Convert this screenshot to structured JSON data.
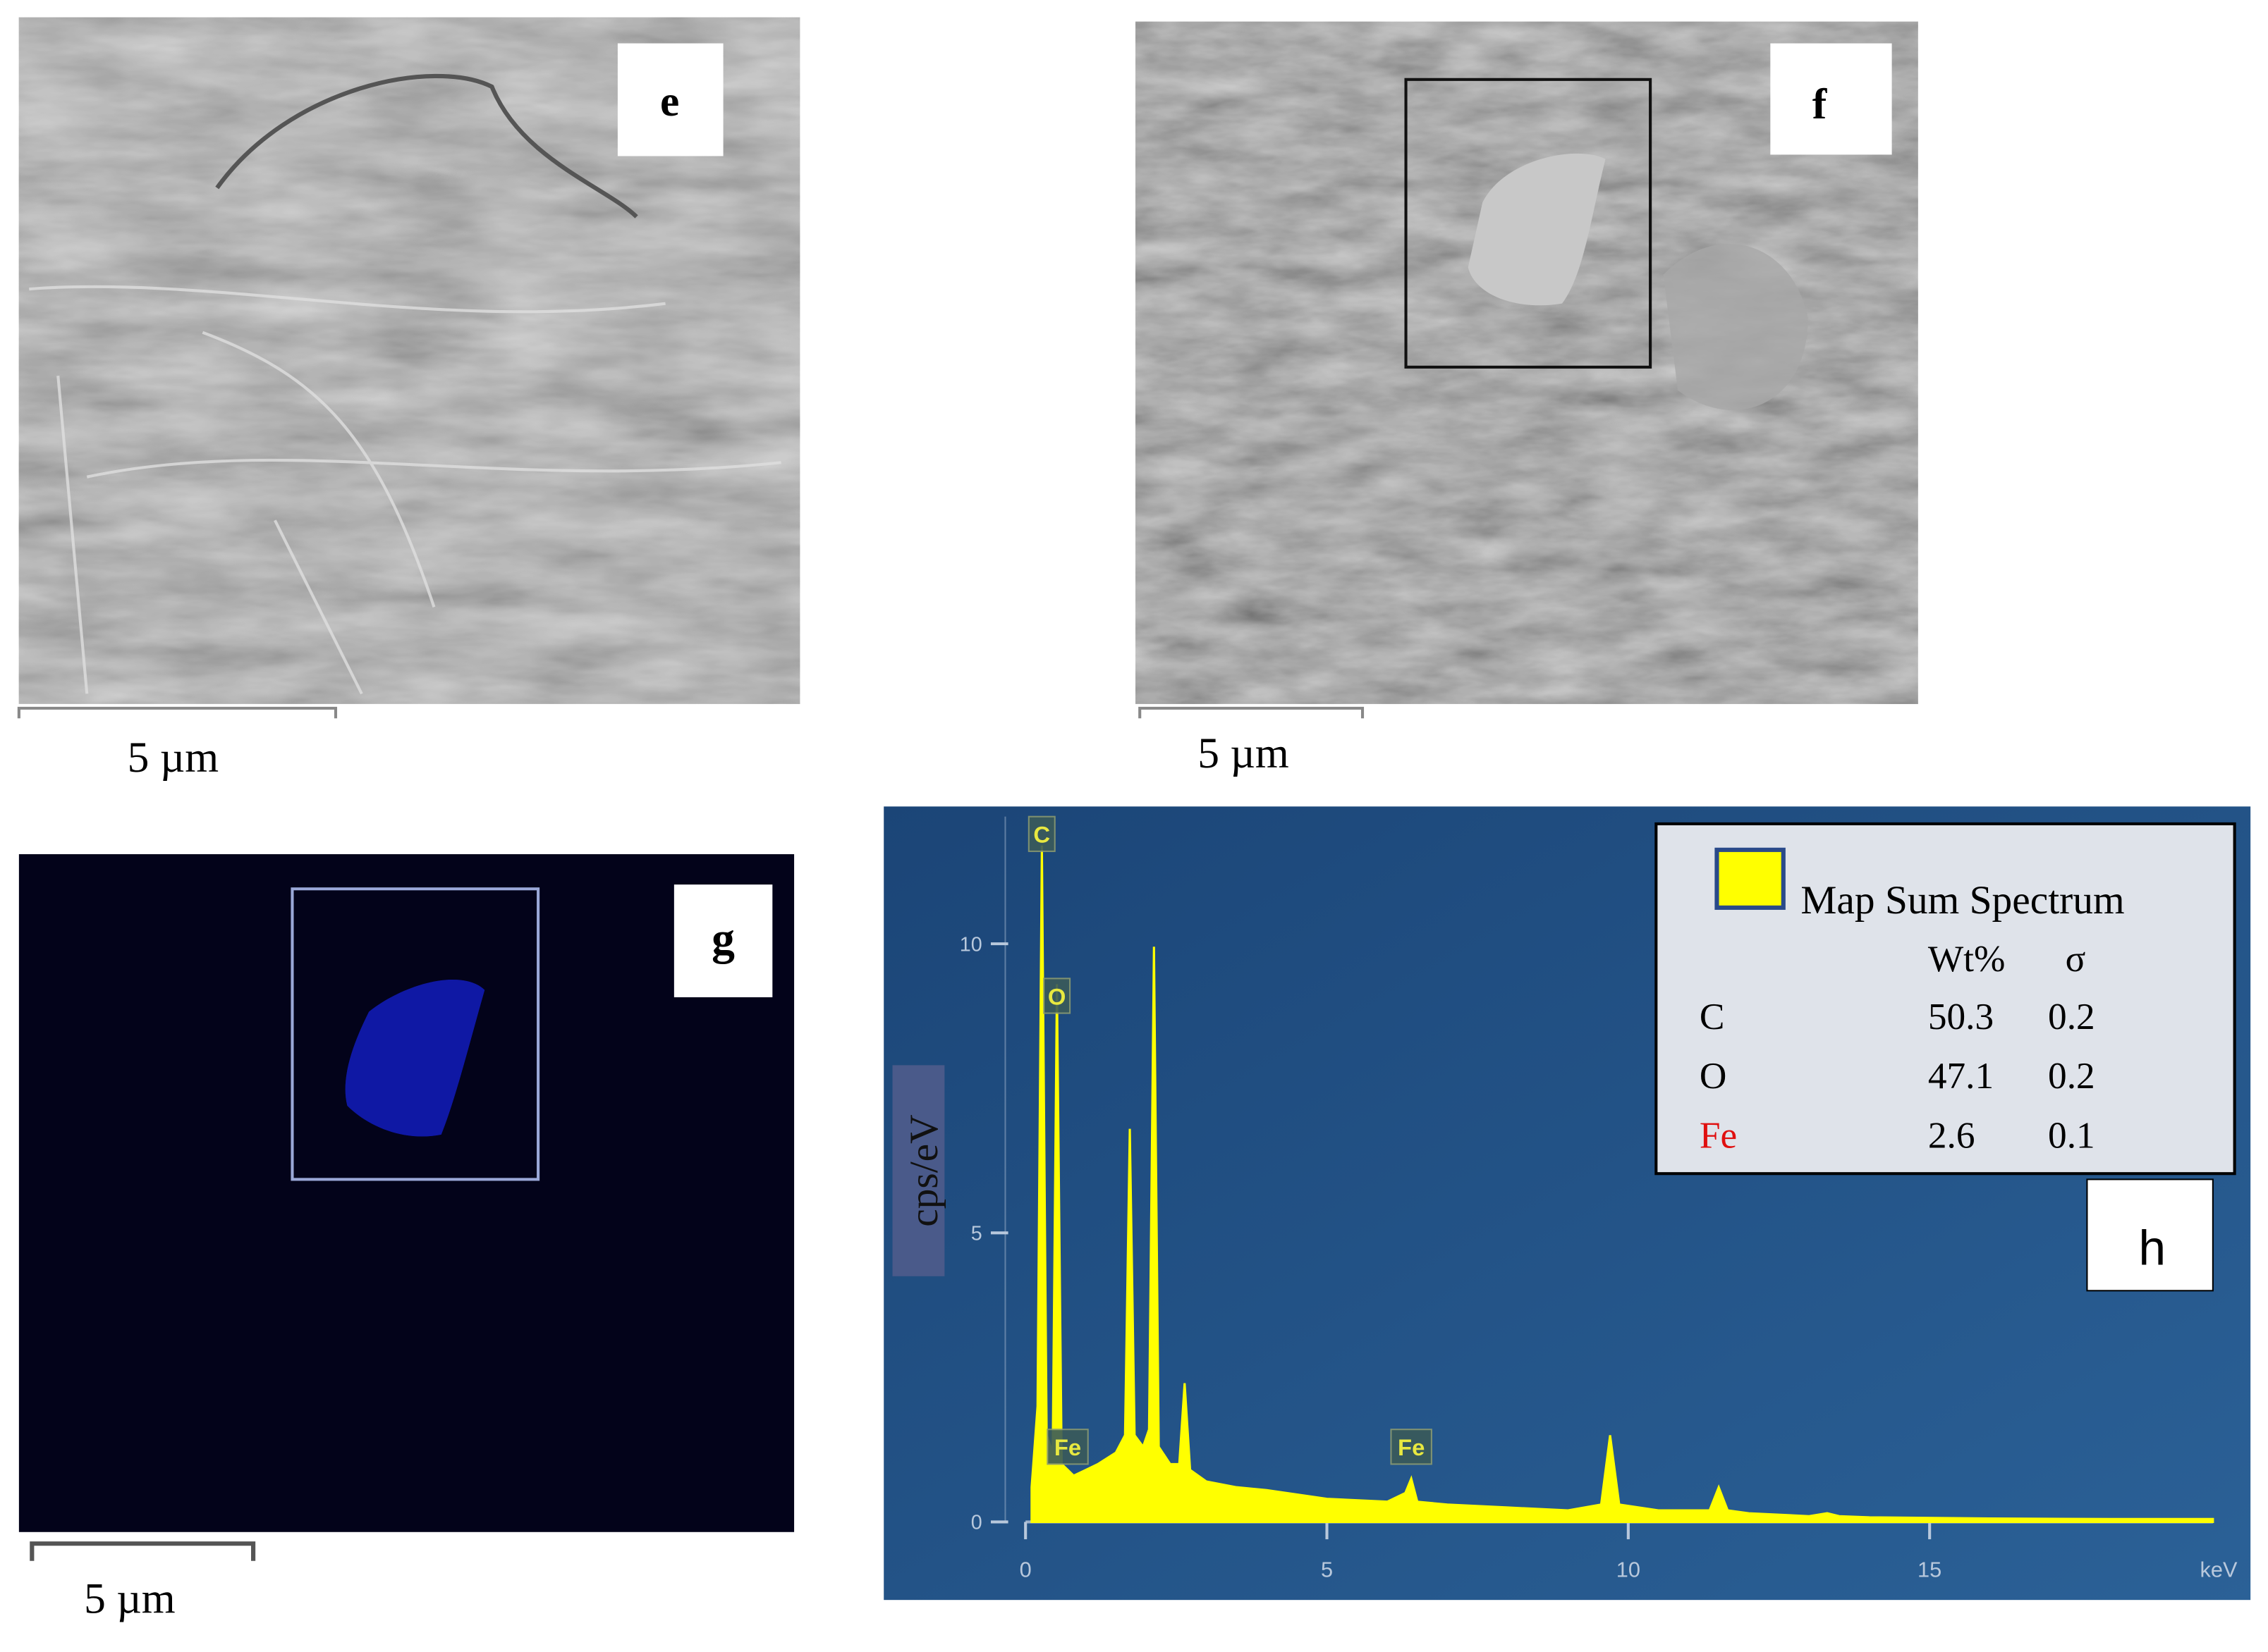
{
  "panels": {
    "e": {
      "label": "e",
      "scale_bar": "5 µm"
    },
    "f": {
      "label": "f",
      "scale_bar": "5 µm"
    },
    "g": {
      "label": "g",
      "scale_bar": "5 µm"
    },
    "h": {
      "label": "h"
    }
  },
  "chart_data": {
    "type": "area",
    "ylabel": "cps/eV",
    "xunit": "keV",
    "color": "#ffff00",
    "x": [
      0.1,
      0.2,
      0.27,
      0.35,
      0.45,
      0.52,
      0.6,
      0.7,
      0.8,
      1.0,
      1.2,
      1.5,
      1.65,
      1.73,
      1.81,
      1.95,
      2.05,
      2.13,
      2.21,
      2.4,
      2.55,
      2.64,
      2.73,
      3.0,
      3.5,
      4,
      5,
      6,
      6.3,
      6.4,
      6.5,
      7,
      8,
      9,
      9.55,
      9.7,
      9.85,
      10.5,
      11,
      11.35,
      11.5,
      11.65,
      12,
      13,
      13.3,
      13.5,
      14,
      16,
      18,
      19.7
    ],
    "values": [
      0.6,
      2.0,
      11.7,
      1.5,
      1.2,
      9.3,
      1.0,
      0.9,
      0.8,
      0.9,
      1.0,
      1.2,
      1.5,
      6.8,
      1.5,
      1.3,
      1.6,
      9.95,
      1.3,
      1.0,
      1.0,
      2.4,
      0.9,
      0.7,
      0.6,
      0.55,
      0.4,
      0.35,
      0.5,
      0.75,
      0.35,
      0.3,
      0.25,
      0.2,
      0.3,
      1.5,
      0.3,
      0.2,
      0.2,
      0.2,
      0.6,
      0.2,
      0.15,
      0.1,
      0.15,
      0.1,
      0.08,
      0.06,
      0.05,
      0.05
    ],
    "xlim": [
      0,
      19.7
    ],
    "ylim": [
      0,
      12.2
    ],
    "xticks": [
      0,
      5,
      10,
      15
    ],
    "yticks": [
      0,
      5,
      10
    ],
    "annotations": [
      {
        "text": "C",
        "x": 0.27,
        "y": 11.9
      },
      {
        "text": "O",
        "x": 0.52,
        "y": 9.1
      },
      {
        "text": "Fe",
        "x": 0.7,
        "y": 1.3
      },
      {
        "text": "Fe",
        "x": 6.4,
        "y": 1.3
      }
    ],
    "legend": {
      "title": "Map Sum Spectrum",
      "columns": [
        "Wt%",
        "σ"
      ],
      "rows": [
        {
          "element": "C",
          "wt": 50.3,
          "sigma": 0.2,
          "color": "#000000"
        },
        {
          "element": "O",
          "wt": 47.1,
          "sigma": 0.2,
          "color": "#000000"
        },
        {
          "element": "Fe",
          "wt": 2.6,
          "sigma": 0.1,
          "color": "#e01010"
        }
      ]
    }
  }
}
